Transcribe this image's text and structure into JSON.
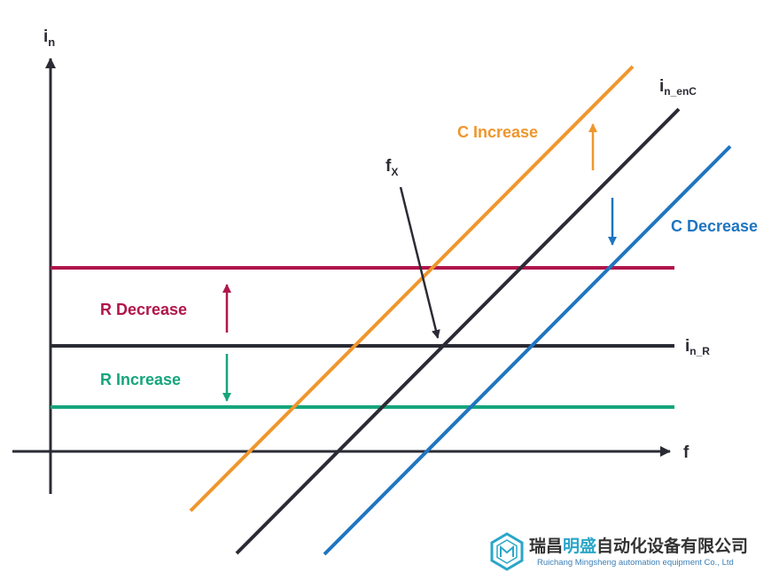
{
  "colors": {
    "axis": "#2b2b35",
    "nominal": "#2b2b35",
    "c_increase": "#f0962c",
    "c_decrease": "#1f75c0",
    "r_decrease": "#b0154b",
    "r_increase": "#16a57c",
    "logo_teal": "#2aa6c8"
  },
  "axes": {
    "y_label_main": "i",
    "y_label_sub": "n",
    "x_label": "f"
  },
  "labels": {
    "i_enc_main": "i",
    "i_enc_sub": "n_enC",
    "i_r_main": "i",
    "i_r_sub": "n_R",
    "fx_main": "f",
    "fx_sub": "X",
    "c_increase": "C Increase",
    "c_decrease": "C Decrease",
    "r_decrease": "R Decrease",
    "r_increase": "R Increase"
  },
  "logo": {
    "icon_name": "hexagon-logo-icon",
    "cn_prefix": "瑞昌",
    "cn_highlight": "明盛",
    "cn_suffix": "自动化设备有限公司",
    "en": "Ruichang Mingsheng automation equipment Co., Ltd"
  }
}
